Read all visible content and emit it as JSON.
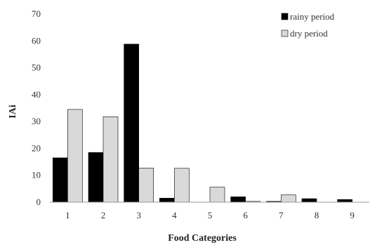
{
  "chart_data": {
    "type": "bar",
    "categories": [
      "1",
      "2",
      "3",
      "4",
      "5",
      "6",
      "7",
      "8",
      "9"
    ],
    "series": [
      {
        "name": "rainy period",
        "color": "#000000",
        "values": [
          16.5,
          18.5,
          58.8,
          1.5,
          0,
          2.0,
          0.3,
          1.3,
          1.0
        ]
      },
      {
        "name": "dry period",
        "color": "#d9d9d9",
        "values": [
          34.5,
          31.8,
          12.7,
          12.6,
          5.6,
          0.3,
          2.7,
          0,
          0
        ]
      }
    ],
    "title": "",
    "xlabel": "Food Categories",
    "ylabel": "IAi",
    "ylim": [
      0,
      70
    ],
    "yticks": [
      0,
      10,
      20,
      30,
      40,
      50,
      60,
      70
    ],
    "grid": false,
    "legend": "top-right"
  }
}
